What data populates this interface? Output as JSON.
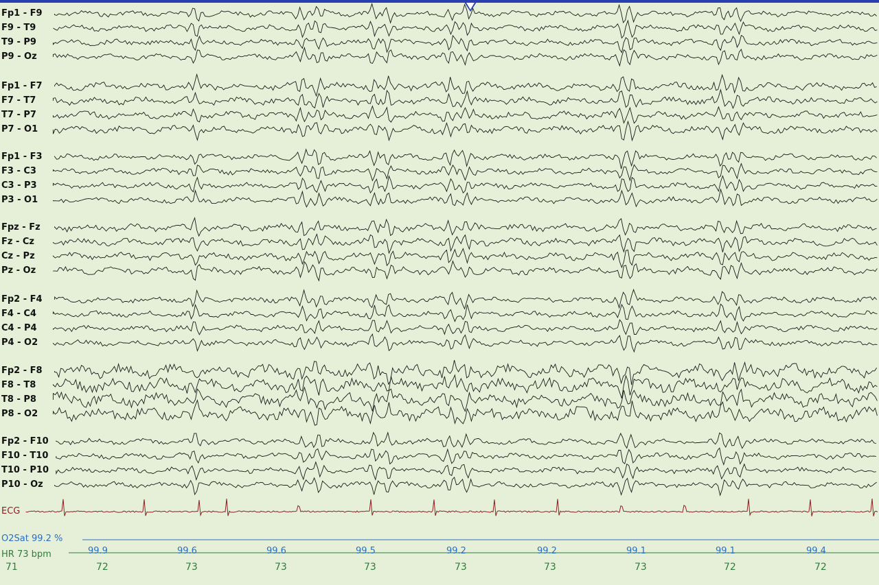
{
  "montage": {
    "channels": [
      "Fp1 - F9",
      "F9 - T9",
      "T9 - P9",
      "P9 - Oz",
      "Fp1 - F7",
      "F7 - T7",
      "T7 - P7",
      "P7 - O1",
      "Fp1 - F3",
      "F3 - C3",
      "C3 - P3",
      "P3 - O1",
      "Fpz - Fz",
      "Fz - Cz",
      "Cz - Pz",
      "Pz - Oz",
      "Fp2 - F4",
      "F4 - C4",
      "C4 - P4",
      "P4 - O2",
      "Fp2 - F8",
      "F8 - T8",
      "T8 - P8",
      "P8 - O2",
      "Fp2 - F10",
      "F10 - T10",
      "T10 - P10",
      "P10 - Oz"
    ],
    "ecg_label": "ECG"
  },
  "colors": {
    "background": "#e6f0d8",
    "eeg_trace": "#1a1a1a",
    "ecg_trace": "#8b1f1f",
    "o2sat": "#2a6fc0",
    "heart_rate": "#2e7d3a",
    "top_bar": "#2a3fb0"
  },
  "o2sat": {
    "label": "O2Sat 99.2 %",
    "values": [
      "99.9",
      "99.6",
      "99.6",
      "99.5",
      "99.2",
      "99.2",
      "99.1",
      "99.1",
      "99.4"
    ]
  },
  "heart_rate": {
    "label": "HR  73 bpm",
    "values": [
      "71",
      "72",
      "73",
      "73",
      "73",
      "73",
      "73",
      "73",
      "72",
      "72"
    ]
  }
}
